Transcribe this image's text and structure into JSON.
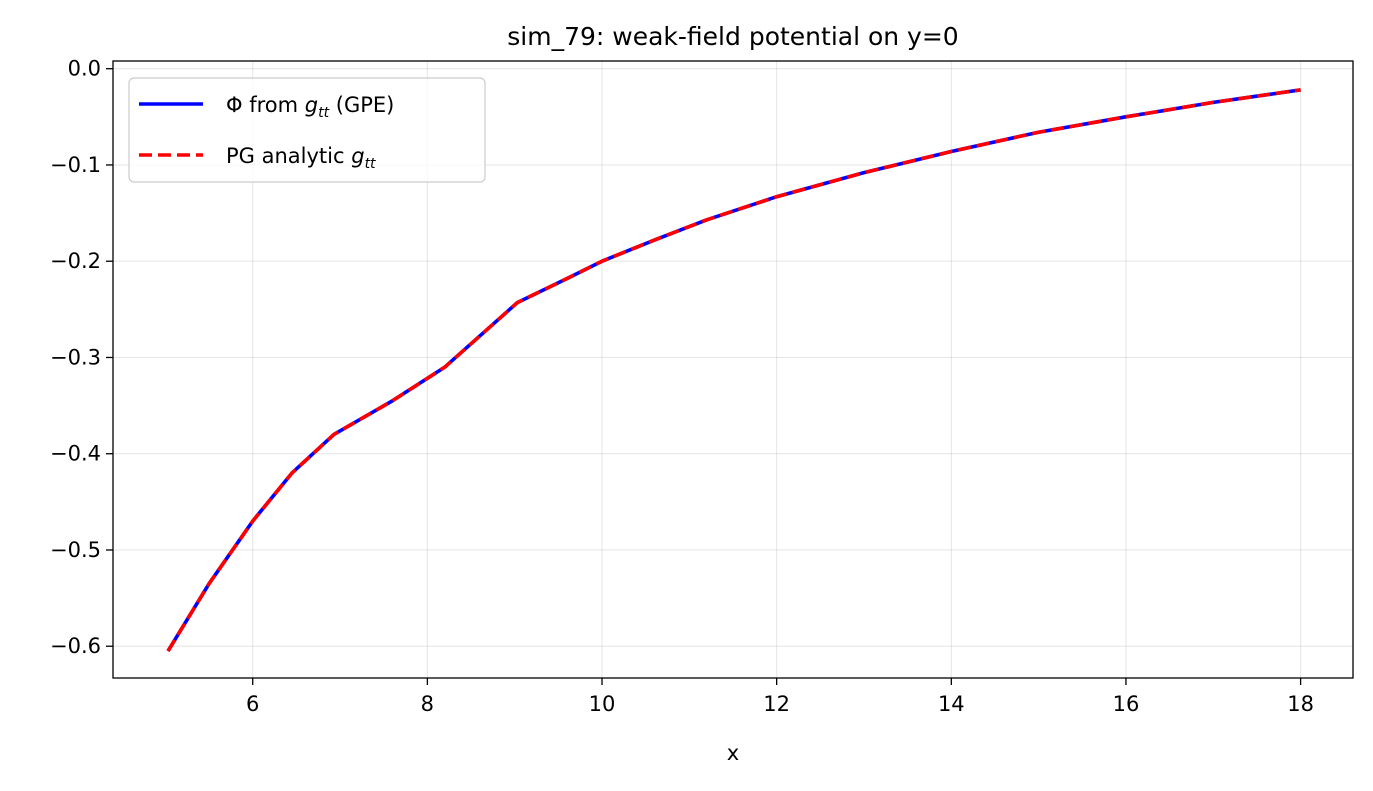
{
  "chart_data": {
    "type": "line",
    "title": "sim_79: weak-field potential on y=0",
    "xlabel": "x",
    "ylabel": "",
    "xlim": [
      4.4,
      18.6
    ],
    "ylim": [
      -0.633,
      0.008
    ],
    "xticks": [
      6,
      8,
      10,
      12,
      14,
      16,
      18
    ],
    "yticks": [
      0.0,
      -0.1,
      -0.2,
      -0.3,
      -0.4,
      -0.5,
      -0.6
    ],
    "xtick_labels": [
      "6",
      "8",
      "10",
      "12",
      "14",
      "16",
      "18"
    ],
    "ytick_labels": [
      "0.0",
      "−0.1",
      "−0.2",
      "−0.3",
      "−0.4",
      "−0.5",
      "−0.6"
    ],
    "grid": true,
    "legend_position": "top-left",
    "x": [
      5.03,
      5.5,
      6.0,
      6.45,
      6.93,
      7.6,
      8.2,
      9.03,
      9.6,
      10.0,
      10.6,
      11.2,
      12.0,
      13.0,
      14.0,
      15.0,
      16.0,
      17.0,
      18.0
    ],
    "series": [
      {
        "name": "Φ from g_tt (GPE)",
        "legend_parts": [
          "Φ from ",
          "g",
          "tt",
          " (GPE)"
        ],
        "color": "#0000ff",
        "style": "solid",
        "values": [
          -0.605,
          -0.535,
          -0.47,
          -0.42,
          -0.38,
          -0.345,
          -0.31,
          -0.243,
          -0.218,
          -0.2,
          -0.178,
          -0.157,
          -0.133,
          -0.108,
          -0.086,
          -0.066,
          -0.05,
          -0.035,
          -0.022
        ]
      },
      {
        "name": "PG analytic g_tt",
        "legend_parts": [
          "PG analytic ",
          "g",
          "tt",
          ""
        ],
        "color": "#ff0000",
        "style": "dashed",
        "values": [
          -0.605,
          -0.535,
          -0.47,
          -0.42,
          -0.38,
          -0.345,
          -0.31,
          -0.243,
          -0.218,
          -0.2,
          -0.178,
          -0.157,
          -0.133,
          -0.108,
          -0.086,
          -0.066,
          -0.05,
          -0.035,
          -0.022
        ]
      }
    ]
  }
}
